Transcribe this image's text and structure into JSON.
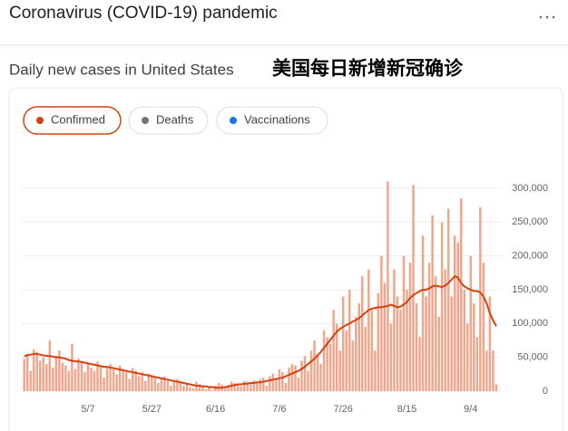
{
  "header": {
    "title": "Coronavirus (COVID-19) pandemic",
    "subtitle": "Daily new cases in United States",
    "annotation": "美国每日新增新冠确诊"
  },
  "chips": [
    {
      "label": "Confirmed",
      "color": "#d64210",
      "selected": true
    },
    {
      "label": "Deaths",
      "color": "#757575",
      "selected": false
    },
    {
      "label": "Vaccinations",
      "color": "#1a73e8",
      "selected": false
    }
  ],
  "chart_data": {
    "type": "bar",
    "categories": [
      null,
      null,
      null,
      null,
      null,
      null,
      null,
      null,
      null,
      null,
      null,
      null,
      null,
      null,
      null,
      null,
      null,
      null,
      null,
      null,
      "5/7",
      null,
      null,
      null,
      null,
      null,
      null,
      null,
      null,
      null,
      null,
      null,
      null,
      null,
      null,
      null,
      null,
      null,
      null,
      null,
      "5/27",
      null,
      null,
      null,
      null,
      null,
      null,
      null,
      null,
      null,
      null,
      null,
      null,
      null,
      null,
      null,
      null,
      null,
      null,
      null,
      "6/16",
      null,
      null,
      null,
      null,
      null,
      null,
      null,
      null,
      null,
      null,
      null,
      null,
      null,
      null,
      null,
      null,
      null,
      null,
      null,
      "7/6",
      null,
      null,
      null,
      null,
      null,
      null,
      null,
      null,
      null,
      null,
      null,
      null,
      null,
      null,
      null,
      null,
      null,
      null,
      null,
      "7/26",
      null,
      null,
      null,
      null,
      null,
      null,
      null,
      null,
      null,
      null,
      null,
      null,
      null,
      null,
      null,
      null,
      null,
      null,
      null,
      "8/15",
      null,
      null,
      null,
      null,
      null,
      null,
      null,
      null,
      null,
      null,
      null,
      null,
      null,
      null,
      null,
      null,
      null,
      null,
      null,
      "9/4",
      null,
      null,
      null,
      null,
      null,
      null,
      null,
      null
    ],
    "series": [
      {
        "type": "bar",
        "color": "#f0a68c",
        "values": [
          48000,
          55000,
          30000,
          62000,
          58000,
          45000,
          50000,
          40000,
          75000,
          35000,
          52000,
          60000,
          42000,
          38000,
          30000,
          70000,
          33000,
          48000,
          45000,
          28000,
          40000,
          35000,
          30000,
          44000,
          38000,
          20000,
          36000,
          40000,
          32000,
          25000,
          38000,
          30000,
          28000,
          18000,
          34000,
          30000,
          22000,
          28000,
          15000,
          26000,
          24000,
          20000,
          12000,
          18000,
          22000,
          15000,
          8000,
          14000,
          18000,
          12000,
          8000,
          10000,
          6000,
          4000,
          14000,
          10000,
          6000,
          3000,
          5000,
          2000,
          8000,
          12000,
          10000,
          6000,
          9000,
          14000,
          12000,
          10000,
          7000,
          15000,
          14000,
          10000,
          16000,
          12000,
          18000,
          20000,
          8000,
          22000,
          26000,
          18000,
          32000,
          28000,
          12000,
          35000,
          40000,
          38000,
          20000,
          45000,
          52000,
          30000,
          60000,
          75000,
          55000,
          40000,
          90000,
          80000,
          70000,
          120000,
          100000,
          60000,
          140000,
          90000,
          150000,
          75000,
          110000,
          130000,
          170000,
          95000,
          180000,
          120000,
          60000,
          145000,
          200000,
          160000,
          310000,
          100000,
          180000,
          140000,
          120000,
          200000,
          150000,
          190000,
          305000,
          130000,
          80000,
          230000,
          140000,
          190000,
          260000,
          170000,
          110000,
          250000,
          180000,
          270000,
          140000,
          230000,
          220000,
          285000,
          150000,
          100000,
          200000,
          130000,
          80000,
          272000,
          190000,
          60000,
          140000,
          60000,
          10000
        ]
      },
      {
        "type": "line",
        "color": "#d64210",
        "values": [
          52000,
          53000,
          54000,
          55000,
          55000,
          54000,
          53000,
          52000,
          52000,
          51000,
          50000,
          50000,
          49000,
          48000,
          46000,
          45000,
          44000,
          44000,
          43000,
          42000,
          41000,
          40000,
          39000,
          38000,
          37000,
          36000,
          36000,
          35000,
          34000,
          33000,
          32000,
          31000,
          30000,
          29000,
          28000,
          27000,
          26000,
          25000,
          24000,
          23000,
          22000,
          21000,
          20000,
          19000,
          18000,
          17000,
          16000,
          15000,
          14000,
          13000,
          12000,
          11000,
          10000,
          9000,
          8000,
          8000,
          7000,
          7000,
          6000,
          6000,
          5000,
          5000,
          5000,
          6000,
          7000,
          8000,
          9000,
          10000,
          10000,
          11000,
          11000,
          12000,
          12000,
          13000,
          13000,
          14000,
          15000,
          16000,
          17000,
          18000,
          19000,
          20000,
          22000,
          24000,
          26000,
          28000,
          30000,
          33000,
          36000,
          40000,
          44000,
          48000,
          53000,
          58000,
          64000,
          70000,
          76000,
          82000,
          88000,
          92000,
          95000,
          98000,
          100000,
          103000,
          105000,
          108000,
          112000,
          116000,
          120000,
          122000,
          123000,
          124000,
          124000,
          125000,
          126000,
          128000,
          126000,
          124000,
          125000,
          128000,
          132000,
          138000,
          142000,
          145000,
          148000,
          150000,
          150000,
          152000,
          155000,
          156000,
          155000,
          154000,
          156000,
          160000,
          165000,
          170000,
          168000,
          160000,
          155000,
          152000,
          150000,
          148000,
          148000,
          146000,
          140000,
          130000,
          115000,
          105000,
          96000
        ]
      }
    ],
    "ylim": [
      0,
      310000
    ],
    "yticks": [
      0,
      {
        "value": 50000,
        "label": "50,000"
      },
      {
        "value": 100000,
        "label": "100,000"
      },
      {
        "value": 150000,
        "label": "150,000"
      },
      {
        "value": 200000,
        "label": "200,000"
      },
      {
        "value": 250000,
        "label": "250,000"
      },
      {
        "value": 300000,
        "label": "300,000"
      }
    ],
    "grid": true
  }
}
